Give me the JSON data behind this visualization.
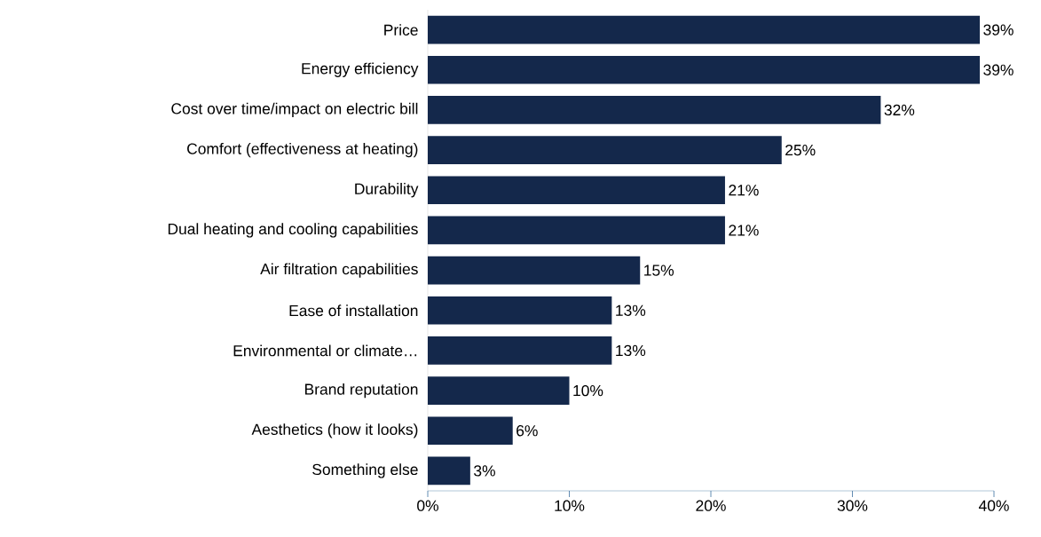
{
  "chart_data": {
    "type": "bar",
    "orientation": "horizontal",
    "categories": [
      "Price",
      "Energy efficiency",
      "Cost over time/impact on electric bill",
      "Comfort (effectiveness at heating)",
      "Durability",
      "Dual heating and cooling capabilities",
      "Air filtration capabilities",
      "Ease of installation",
      "Environmental or climate…",
      "Brand reputation",
      "Aesthetics (how it looks)",
      "Something else"
    ],
    "values": [
      39,
      39,
      32,
      25,
      21,
      21,
      15,
      13,
      13,
      10,
      6,
      3
    ],
    "value_labels": [
      "39%",
      "39%",
      "32%",
      "25%",
      "21%",
      "21%",
      "15%",
      "13%",
      "13%",
      "10%",
      "6%",
      "3%"
    ],
    "color": "#14284b",
    "xlim": [
      0,
      40
    ],
    "xticks": [
      {
        "value": 0,
        "label": "0%"
      },
      {
        "value": 10,
        "label": "10%"
      },
      {
        "value": 20,
        "label": "20%"
      },
      {
        "value": 30,
        "label": "30%"
      },
      {
        "value": 40,
        "label": "40%"
      }
    ],
    "grid": false
  }
}
